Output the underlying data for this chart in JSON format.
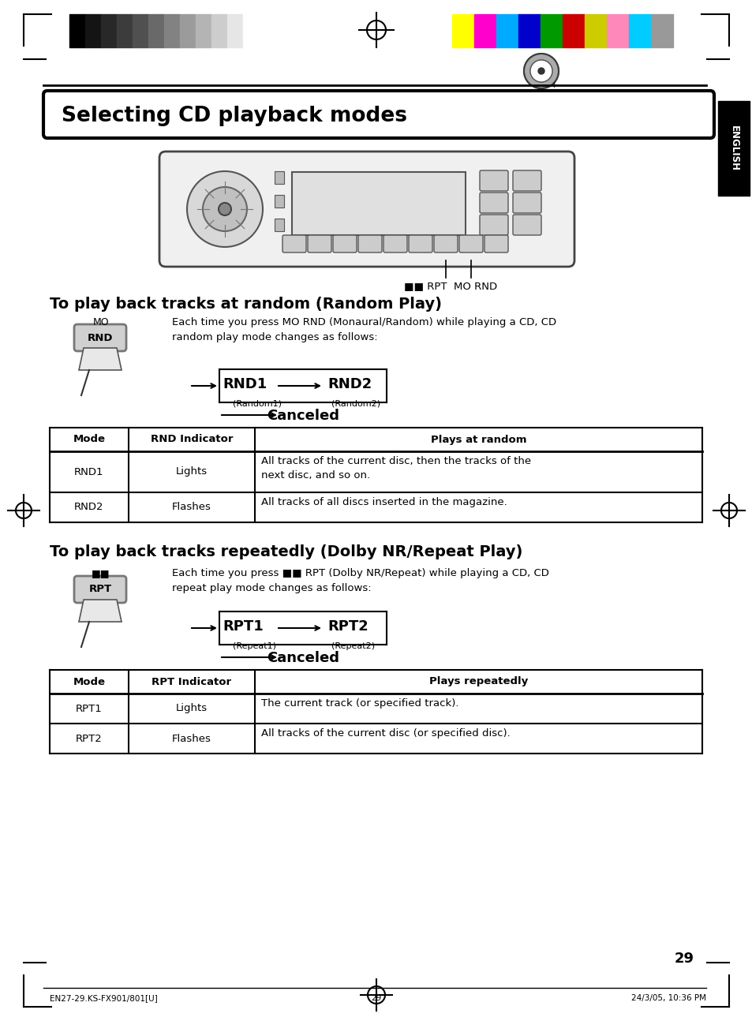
{
  "page_title": "Selecting CD playback modes",
  "section1_title": "To play back tracks at random (Random Play)",
  "section1_desc": "Each time you press MO RND (Monaural/Random) while playing a CD, CD\nrandom play mode changes as follows:",
  "section1_flow": [
    "RND1",
    "RND2",
    "Canceled"
  ],
  "section1_sub": [
    "(Random1)",
    "(Random2)"
  ],
  "table1_headers": [
    "Mode",
    "RND Indicator",
    "Plays at random"
  ],
  "table1_rows": [
    [
      "RND1",
      "Lights",
      "All tracks of the current disc, then the tracks of the\nnext disc, and so on."
    ],
    [
      "RND2",
      "Flashes",
      "All tracks of all discs inserted in the magazine."
    ]
  ],
  "section2_title": "To play back tracks repeatedly (Dolby NR/Repeat Play)",
  "section2_desc_prefix": "Each time you press ",
  "section2_desc_suffix": " RPT (Dolby NR/Repeat) while playing a CD, CD\nrepeat play mode changes as follows:",
  "section2_flow": [
    "RPT1",
    "RPT2",
    "Canceled"
  ],
  "section2_sub": [
    "(Repeat1)",
    "(Repeat2)"
  ],
  "table2_headers": [
    "Mode",
    "RPT Indicator",
    "Plays repeatedly"
  ],
  "table2_rows": [
    [
      "RPT1",
      "Lights",
      "The current track (or specified track)."
    ],
    [
      "RPT2",
      "Flashes",
      "All tracks of the current disc (or specified disc)."
    ]
  ],
  "footer_left": "EN27-29.KS-FX901/801[U]",
  "footer_center": "29",
  "footer_right": "24/3/05, 10:36 PM",
  "page_number": "29",
  "bg_color": "#ffffff",
  "dark_strip_colors": [
    "#000000",
    "#141414",
    "#282828",
    "#3c3c3c",
    "#505050",
    "#696969",
    "#828282",
    "#9b9b9b",
    "#b4b4b4",
    "#cdcdcd",
    "#e6e6e6",
    "#ffffff"
  ],
  "color_strips": [
    "#ffff00",
    "#ff00cc",
    "#00aaff",
    "#0000cc",
    "#009900",
    "#cc0000",
    "#cccc00",
    "#ff88bb",
    "#00ccff",
    "#999999"
  ],
  "english_tab_bg": "#000000"
}
